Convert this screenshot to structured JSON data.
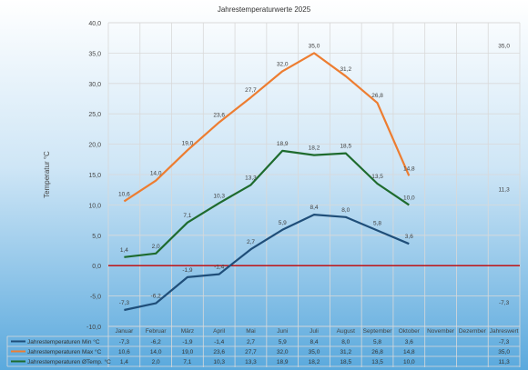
{
  "chart_data": {
    "type": "line",
    "title": "Jahrestemperaturwerte 2025",
    "ylabel": "Temperatur °C",
    "ylim": [
      -10,
      40
    ],
    "ytick_step": 5,
    "yticks": [
      "-10,0",
      "-5,0",
      "0,0",
      "5,0",
      "10,0",
      "15,0",
      "20,0",
      "25,0",
      "30,0",
      "35,0",
      "40,0"
    ],
    "grid": true,
    "legend": "bottom-table",
    "categories": [
      "Januar",
      "Februar",
      "März",
      "April",
      "Mai",
      "Juni",
      "Juli",
      "August",
      "September",
      "Oktober",
      "November",
      "Dezember",
      "Jahreswert"
    ],
    "series": [
      {
        "name": "Jahrestemperaturen Min °C",
        "color": "#1f4e79",
        "values": [
          -7.3,
          -6.2,
          -1.9,
          -1.4,
          2.7,
          5.9,
          8.4,
          8.0,
          5.8,
          3.6,
          null,
          null,
          -7.3
        ],
        "labels": [
          "-7,3",
          "-6,2",
          "-1,9",
          "-1,4",
          "2,7",
          "5,9",
          "8,4",
          "8,0",
          "5,8",
          "3,6",
          "",
          "",
          "-7,3"
        ]
      },
      {
        "name": "Jahrestemperaturen Max °C",
        "color": "#ed7d31",
        "values": [
          10.6,
          14.0,
          19.0,
          23.6,
          27.7,
          32.0,
          35.0,
          31.2,
          26.8,
          14.8,
          null,
          null,
          35.0
        ],
        "labels": [
          "10,6",
          "14,0",
          "19,0",
          "23,6",
          "27,7",
          "32,0",
          "35,0",
          "31,2",
          "26,8",
          "14,8",
          "",
          "",
          "35,0"
        ]
      },
      {
        "name": "Jahrestemperaturen ØTemp. °C",
        "color": "#1e6b2e",
        "values": [
          1.4,
          2.0,
          7.1,
          10.3,
          13.3,
          18.9,
          18.2,
          18.5,
          13.5,
          10.0,
          null,
          null,
          11.3
        ],
        "labels": [
          "1,4",
          "2,0",
          "7,1",
          "10,3",
          "13,3",
          "18,9",
          "18,2",
          "18,5",
          "13,5",
          "10,0",
          "",
          "",
          "11,3"
        ]
      }
    ],
    "zero_line_color": "#c00000"
  }
}
